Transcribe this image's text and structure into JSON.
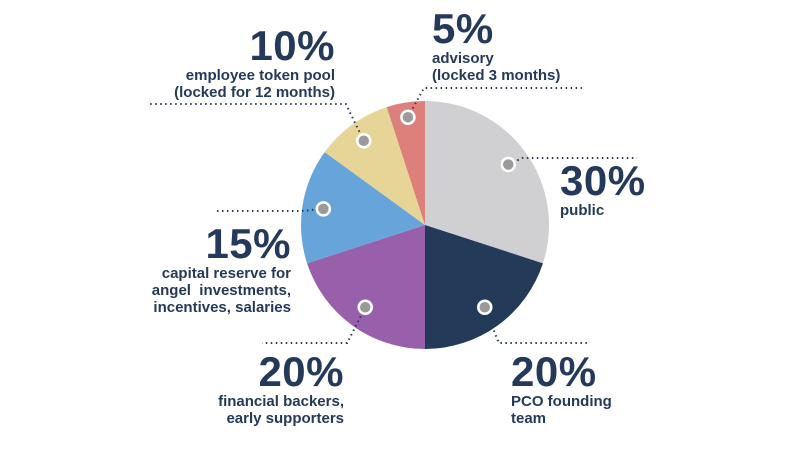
{
  "chart_data": {
    "type": "pie",
    "slices": [
      {
        "percent_label": "30%",
        "value": 30,
        "label": "public",
        "color": "#d0d0d2"
      },
      {
        "percent_label": "20%",
        "value": 20,
        "label": "PCO founding\nteam",
        "color": "#243a59"
      },
      {
        "percent_label": "20%",
        "value": 20,
        "label": "financial backers,\nearly supporters",
        "color": "#9860aa"
      },
      {
        "percent_label": "15%",
        "value": 15,
        "label": "capital reserve for\nangel  investments,\nincentives, salaries",
        "color": "#66a4d9"
      },
      {
        "percent_label": "10%",
        "value": 10,
        "label": "employee token pool\n(locked for 12 months)",
        "color": "#e6d597"
      },
      {
        "percent_label": "5%",
        "value": 5,
        "label": "advisory\n(locked 3 months)",
        "color": "#dd7f7b"
      }
    ],
    "start_angle": "12 o'clock",
    "direction": "clockwise",
    "marker_color": "#9a9a9a",
    "text_color": "#253a5a"
  }
}
